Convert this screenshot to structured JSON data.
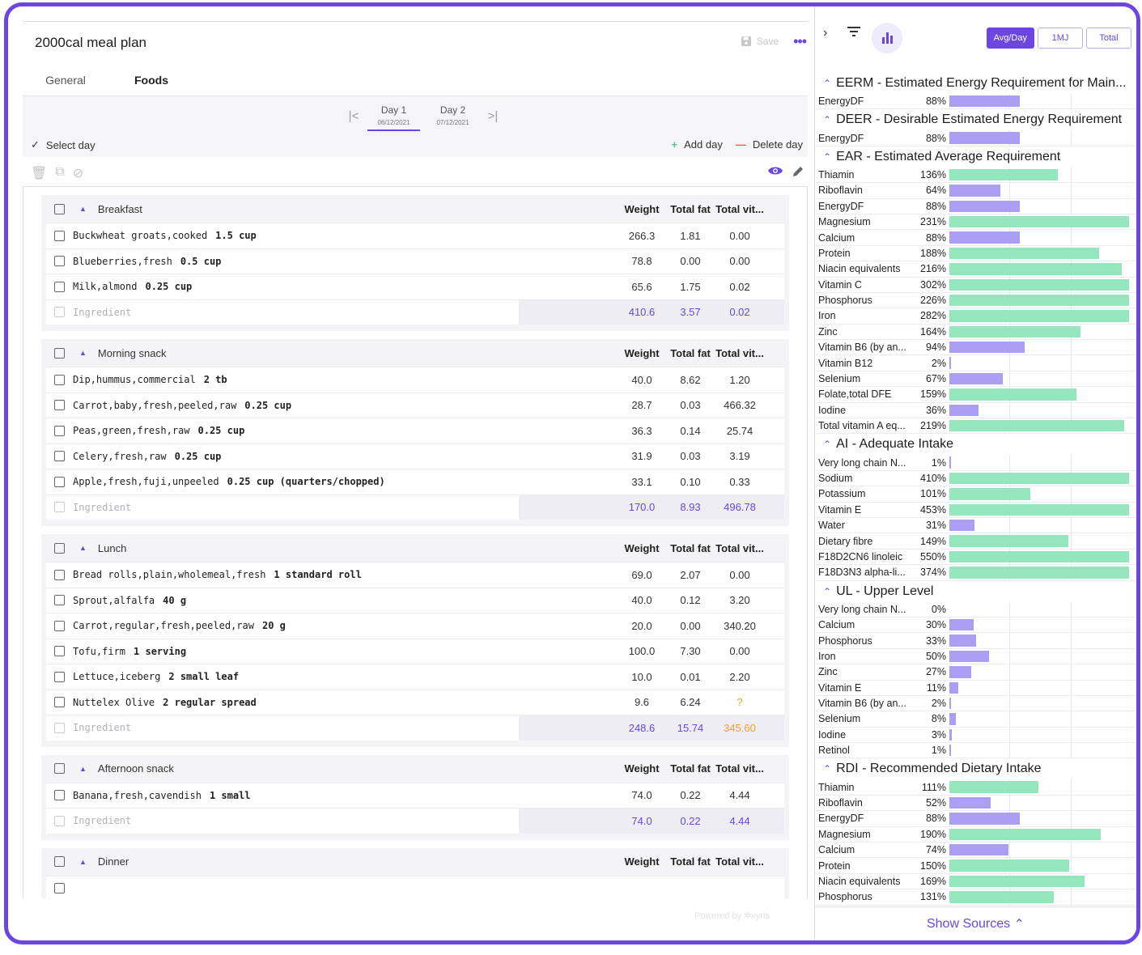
{
  "header": {
    "title": "2000cal meal plan",
    "save_label": "Save",
    "more": "•••"
  },
  "tabs": [
    {
      "label": "General"
    },
    {
      "label": "Foods"
    }
  ],
  "days": [
    {
      "name": "Day 1",
      "date": "06/12/2021"
    },
    {
      "name": "Day 2",
      "date": "07/12/2021"
    }
  ],
  "day_actions": {
    "select": "Select day",
    "add": "Add day",
    "delete": "Delete day"
  },
  "columns": {
    "weight": "Weight",
    "fat": "Total fat",
    "vit": "Total vit..."
  },
  "ingredient_placeholder": "Ingredient",
  "meals": [
    {
      "name": "Breakfast",
      "items": [
        {
          "food": "Buckwheat groats,cooked",
          "qty": "1.5 cup",
          "weight": "266.3",
          "fat": "1.81",
          "vit": "0.00"
        },
        {
          "food": "Blueberries,fresh",
          "qty": "0.5 cup",
          "weight": "78.8",
          "fat": "0.00",
          "vit": "0.00"
        },
        {
          "food": "Milk,almond",
          "qty": "0.25 cup",
          "weight": "65.6",
          "fat": "1.75",
          "vit": "0.02"
        }
      ],
      "total": {
        "weight": "410.6",
        "fat": "3.57",
        "vit": "0.02"
      }
    },
    {
      "name": "Morning snack",
      "items": [
        {
          "food": "Dip,hummus,commercial",
          "qty": "2 tb",
          "weight": "40.0",
          "fat": "8.62",
          "vit": "1.20"
        },
        {
          "food": "Carrot,baby,fresh,peeled,raw",
          "qty": "0.25 cup",
          "weight": "28.7",
          "fat": "0.03",
          "vit": "466.32"
        },
        {
          "food": "Peas,green,fresh,raw",
          "qty": "0.25 cup",
          "weight": "36.3",
          "fat": "0.14",
          "vit": "25.74"
        },
        {
          "food": "Celery,fresh,raw",
          "qty": "0.25 cup",
          "weight": "31.9",
          "fat": "0.03",
          "vit": "3.19"
        },
        {
          "food": "Apple,fresh,fuji,unpeeled",
          "qty": "0.25 cup (quarters/chopped)",
          "weight": "33.1",
          "fat": "0.10",
          "vit": "0.33"
        }
      ],
      "total": {
        "weight": "170.0",
        "fat": "8.93",
        "vit": "496.78"
      }
    },
    {
      "name": "Lunch",
      "items": [
        {
          "food": "Bread rolls,plain,wholemeal,fresh",
          "qty": "1 standard roll",
          "weight": "69.0",
          "fat": "2.07",
          "vit": "0.00"
        },
        {
          "food": "Sprout,alfalfa",
          "qty": "40 g",
          "weight": "40.0",
          "fat": "0.12",
          "vit": "3.20"
        },
        {
          "food": "Carrot,regular,fresh,peeled,raw",
          "qty": "20 g",
          "weight": "20.0",
          "fat": "0.00",
          "vit": "340.20"
        },
        {
          "food": "Tofu,firm",
          "qty": "1 serving",
          "weight": "100.0",
          "fat": "7.30",
          "vit": "0.00"
        },
        {
          "food": "Lettuce,iceberg",
          "qty": "2 small leaf",
          "weight": "10.0",
          "fat": "0.01",
          "vit": "2.20"
        },
        {
          "food": "Nuttelex Olive",
          "qty": "2 regular spread",
          "weight": "9.6",
          "fat": "6.24",
          "vit": "?"
        }
      ],
      "total": {
        "weight": "248.6",
        "fat": "15.74",
        "vit": "345.60"
      }
    },
    {
      "name": "Afternoon snack",
      "items": [
        {
          "food": "Banana,fresh,cavendish",
          "qty": "1 small",
          "weight": "74.0",
          "fat": "0.22",
          "vit": "4.44"
        }
      ],
      "total": {
        "weight": "74.0",
        "fat": "0.22",
        "vit": "4.44"
      }
    },
    {
      "name": "Dinner",
      "items": [],
      "total": null
    }
  ],
  "powered_by": "Powered by ✲xyris",
  "view_modes": [
    "Avg/Day",
    "1MJ",
    "Total"
  ],
  "colors": {
    "accent": "#6b46e0",
    "below_target": "#ad9ef5",
    "above_target": "#94e6bd",
    "warning": "#f2a128"
  },
  "nutrient_sections": [
    {
      "title": "EERM - Estimated Energy Requirement for Main...",
      "rows": [
        {
          "name": "EnergyDF",
          "pct": "88%",
          "value": 88
        }
      ]
    },
    {
      "title": "DEER - Desirable Estimated Energy Requirement",
      "rows": [
        {
          "name": "EnergyDF",
          "pct": "88%",
          "value": 88
        }
      ]
    },
    {
      "title": "EAR - Estimated Average Requirement",
      "rows": [
        {
          "name": "Thiamin",
          "pct": "136%",
          "value": 136
        },
        {
          "name": "Riboflavin",
          "pct": "64%",
          "value": 64
        },
        {
          "name": "EnergyDF",
          "pct": "88%",
          "value": 88
        },
        {
          "name": "Magnesium",
          "pct": "231%",
          "value": 231
        },
        {
          "name": "Calcium",
          "pct": "88%",
          "value": 88
        },
        {
          "name": "Protein",
          "pct": "188%",
          "value": 188
        },
        {
          "name": "Niacin equivalents",
          "pct": "216%",
          "value": 216
        },
        {
          "name": "Vitamin C",
          "pct": "302%",
          "value": 302
        },
        {
          "name": "Phosphorus",
          "pct": "226%",
          "value": 226
        },
        {
          "name": "Iron",
          "pct": "282%",
          "value": 282
        },
        {
          "name": "Zinc",
          "pct": "164%",
          "value": 164
        },
        {
          "name": "Vitamin B6 (by an...",
          "pct": "94%",
          "value": 94
        },
        {
          "name": "Vitamin B12",
          "pct": "2%",
          "value": 2
        },
        {
          "name": "Selenium",
          "pct": "67%",
          "value": 67
        },
        {
          "name": "Folate,total DFE",
          "pct": "159%",
          "value": 159
        },
        {
          "name": "Iodine",
          "pct": "36%",
          "value": 36
        },
        {
          "name": "Total vitamin A eq...",
          "pct": "219%",
          "value": 219
        }
      ]
    },
    {
      "title": "AI - Adequate Intake",
      "rows": [
        {
          "name": "Very long chain N...",
          "pct": "1%",
          "value": 1
        },
        {
          "name": "Sodium",
          "pct": "410%",
          "value": 410
        },
        {
          "name": "Potassium",
          "pct": "101%",
          "value": 101
        },
        {
          "name": "Vitamin E",
          "pct": "453%",
          "value": 453
        },
        {
          "name": "Water",
          "pct": "31%",
          "value": 31
        },
        {
          "name": "Dietary fibre",
          "pct": "149%",
          "value": 149
        },
        {
          "name": "F18D2CN6 linoleic",
          "pct": "550%",
          "value": 550
        },
        {
          "name": "F18D3N3 alpha-li...",
          "pct": "374%",
          "value": 374
        }
      ]
    },
    {
      "title": "UL - Upper Level",
      "rows": [
        {
          "name": "Very long chain N...",
          "pct": "0%",
          "value": 0
        },
        {
          "name": "Calcium",
          "pct": "30%",
          "value": 30
        },
        {
          "name": "Phosphorus",
          "pct": "33%",
          "value": 33
        },
        {
          "name": "Iron",
          "pct": "50%",
          "value": 50
        },
        {
          "name": "Zinc",
          "pct": "27%",
          "value": 27
        },
        {
          "name": "Vitamin E",
          "pct": "11%",
          "value": 11
        },
        {
          "name": "Vitamin B6 (by an...",
          "pct": "2%",
          "value": 2
        },
        {
          "name": "Selenium",
          "pct": "8%",
          "value": 8
        },
        {
          "name": "Iodine",
          "pct": "3%",
          "value": 3
        },
        {
          "name": "Retinol",
          "pct": "1%",
          "value": 1
        }
      ]
    },
    {
      "title": "RDI - Recommended Dietary Intake",
      "rows": [
        {
          "name": "Thiamin",
          "pct": "111%",
          "value": 111
        },
        {
          "name": "Riboflavin",
          "pct": "52%",
          "value": 52
        },
        {
          "name": "EnergyDF",
          "pct": "88%",
          "value": 88
        },
        {
          "name": "Magnesium",
          "pct": "190%",
          "value": 190
        },
        {
          "name": "Calcium",
          "pct": "74%",
          "value": 74
        },
        {
          "name": "Protein",
          "pct": "150%",
          "value": 150
        },
        {
          "name": "Niacin equivalents",
          "pct": "169%",
          "value": 169
        },
        {
          "name": "Phosphorus",
          "pct": "131%",
          "value": 131
        }
      ]
    }
  ],
  "show_sources": "Show Sources"
}
